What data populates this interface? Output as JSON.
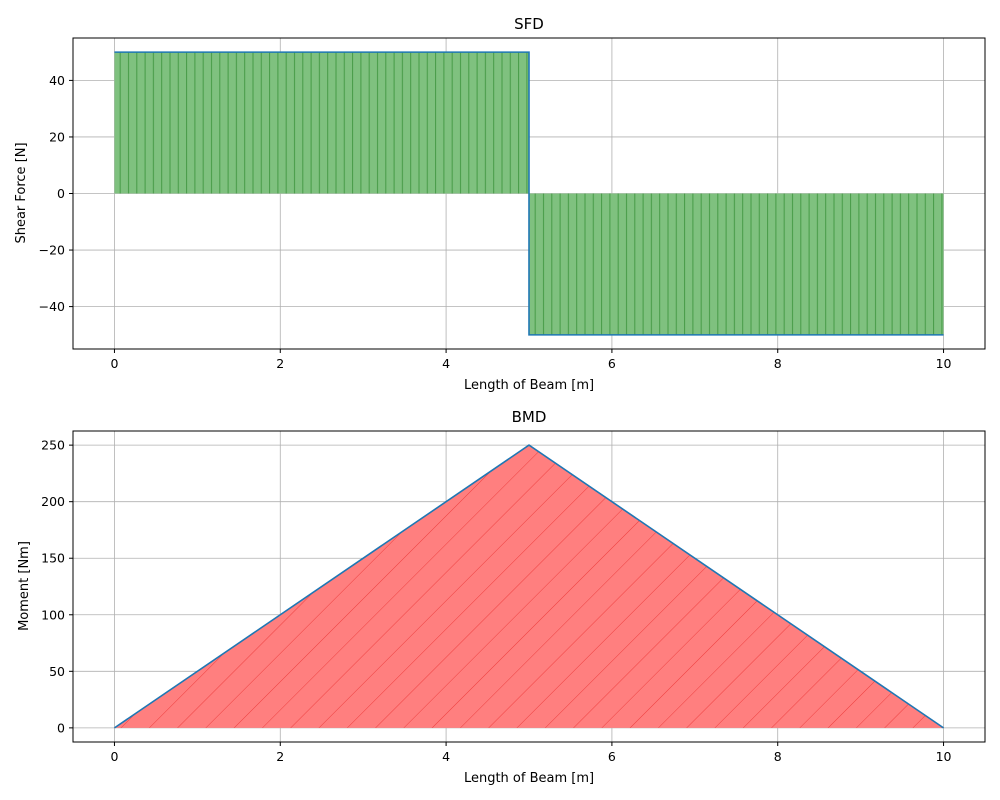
{
  "chart_data": [
    {
      "type": "area",
      "title": "SFD",
      "xlabel": "Length of Beam [m]",
      "ylabel": "Shear Force [N]",
      "xlim": [
        -0.5,
        10.5
      ],
      "ylim": [
        -55,
        55
      ],
      "xticks": [
        0,
        2,
        4,
        6,
        8,
        10
      ],
      "yticks": [
        -40,
        -20,
        0,
        20,
        40
      ],
      "xtick_labels": [
        "0",
        "2",
        "4",
        "6",
        "8",
        "10"
      ],
      "ytick_labels": [
        "−40",
        "−20",
        "0",
        "20",
        "40"
      ],
      "grid": true,
      "fill_color": "#7fc17f",
      "fill_hatch_color": "#2e8b2e",
      "hatch": "vertical",
      "line_color": "#1f77b4",
      "x": [
        0,
        5,
        5,
        10
      ],
      "y": [
        50,
        50,
        -50,
        -50
      ]
    },
    {
      "type": "area",
      "title": "BMD",
      "xlabel": "Length of Beam [m]",
      "ylabel": "Moment [Nm]",
      "xlim": [
        -0.5,
        10.5
      ],
      "ylim": [
        -12.5,
        262.5
      ],
      "xticks": [
        0,
        2,
        4,
        6,
        8,
        10
      ],
      "yticks": [
        0,
        50,
        100,
        150,
        200,
        250
      ],
      "xtick_labels": [
        "0",
        "2",
        "4",
        "6",
        "8",
        "10"
      ],
      "ytick_labels": [
        "0",
        "50",
        "100",
        "150",
        "200",
        "250"
      ],
      "grid": true,
      "fill_color": "#ff7f7f",
      "fill_hatch_color": "#e83030",
      "hatch": "diagonal",
      "line_color": "#1f77b4",
      "x": [
        0,
        5,
        10
      ],
      "y": [
        0,
        250,
        0
      ]
    }
  ]
}
